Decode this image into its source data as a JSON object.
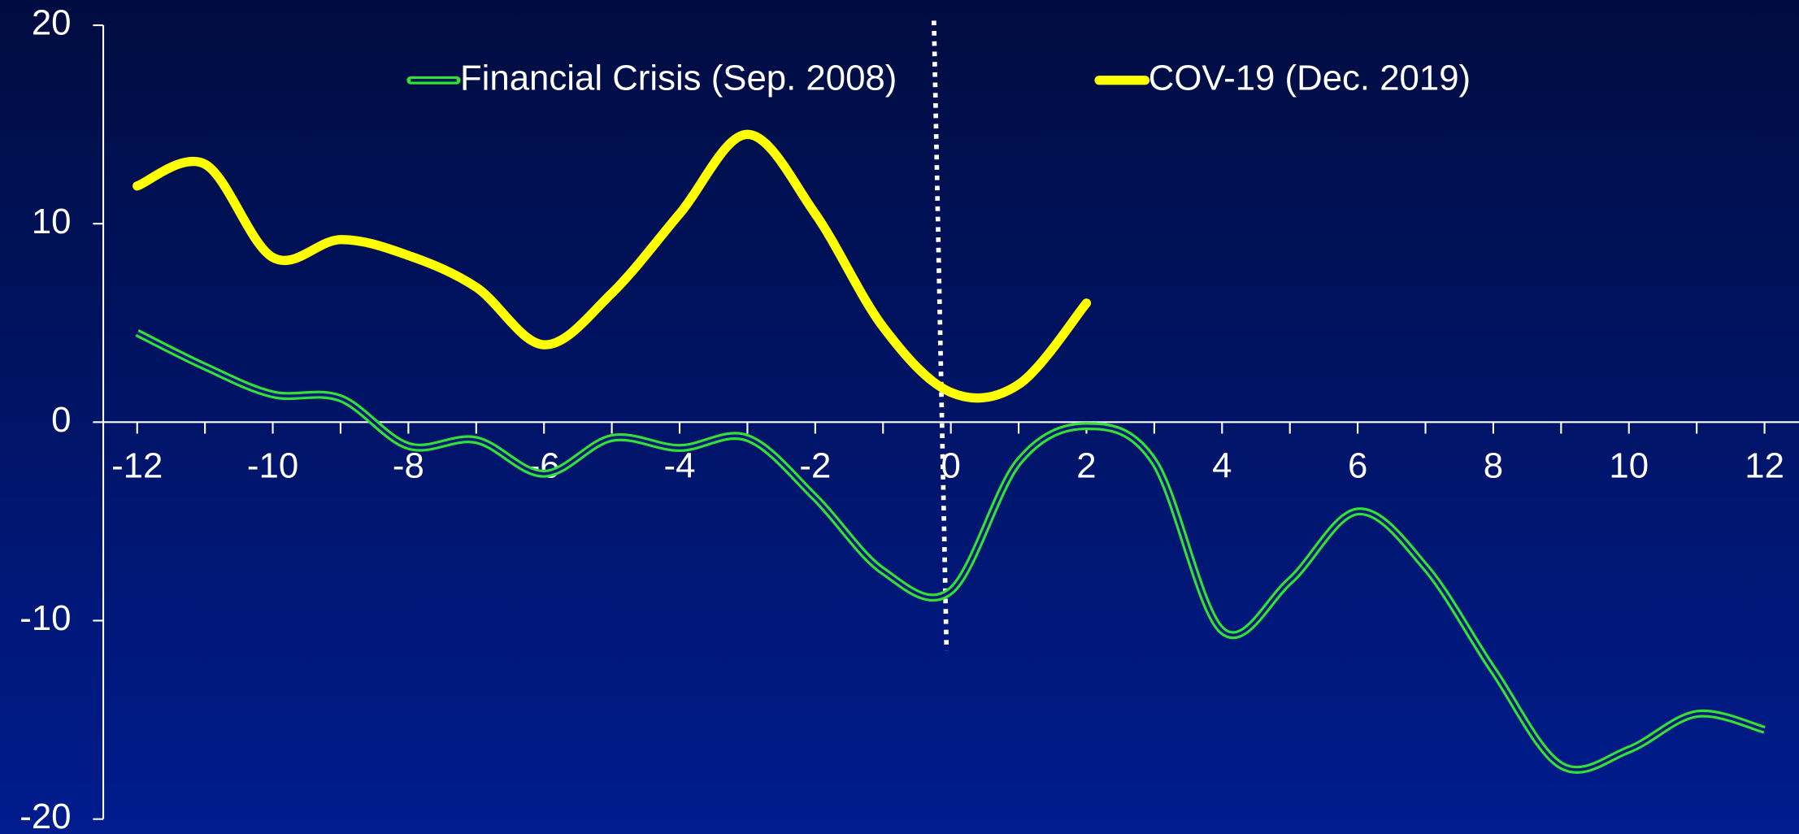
{
  "chart_data": {
    "type": "line",
    "x": [
      -12,
      -11,
      -10,
      -9,
      -8,
      -7,
      -6,
      -5,
      -4,
      -3,
      -2,
      -1,
      0,
      1,
      2,
      3,
      4,
      5,
      6,
      7,
      8,
      9,
      10,
      11,
      12
    ],
    "series": [
      {
        "name": "Financial Crisis (Sep. 2008)",
        "color": "#33e033",
        "values": [
          4.5,
          2.8,
          1.4,
          1.2,
          -1.2,
          -0.9,
          -2.6,
          -0.8,
          -1.3,
          -0.8,
          -3.8,
          -7.5,
          -8.5,
          -2,
          -0.2,
          -2,
          -10.5,
          -8,
          -4.5,
          -7.3,
          -12.5,
          -17.3,
          -16.5,
          -14.7,
          -15.5
        ]
      },
      {
        "name": "COV-19 (Dec. 2019)",
        "color": "#ffff00",
        "values": [
          11.9,
          13,
          8.3,
          9.2,
          8.4,
          6.8,
          3.9,
          6.5,
          10.5,
          14.5,
          10.5,
          4.8,
          1.5,
          1.9,
          6,
          null,
          null,
          null,
          null,
          null,
          null,
          null,
          null,
          null,
          null
        ]
      }
    ],
    "xlim": [
      -12.5,
      12.5
    ],
    "xticks": [
      -12,
      -10,
      -8,
      -6,
      -4,
      -2,
      0,
      2,
      4,
      6,
      8,
      10,
      12
    ],
    "ylim": [
      -20,
      20
    ],
    "yticks": [
      -20,
      -10,
      0,
      10,
      20
    ],
    "legend": "top"
  }
}
